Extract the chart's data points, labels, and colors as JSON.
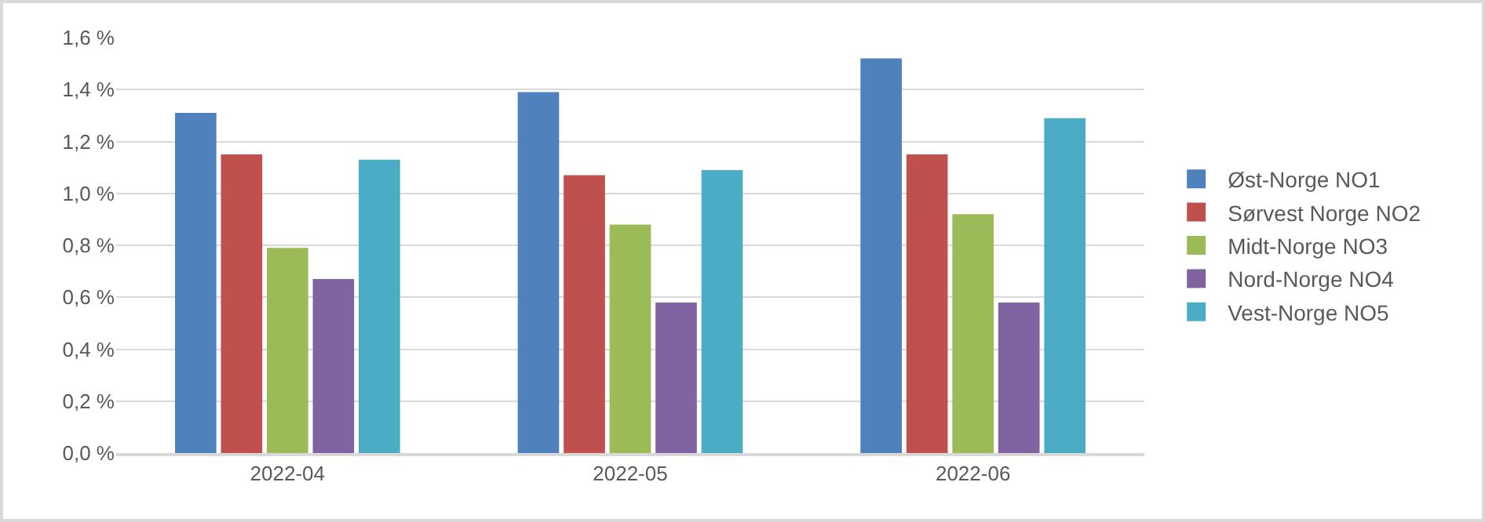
{
  "chart_data": {
    "type": "bar",
    "categories": [
      "2022-04",
      "2022-05",
      "2022-06"
    ],
    "series": [
      {
        "name": "Øst-Norge NO1",
        "color": "#4f81bd",
        "values": [
          1.31,
          1.39,
          1.52
        ]
      },
      {
        "name": "Sørvest Norge NO2",
        "color": "#c0504d",
        "values": [
          1.15,
          1.07,
          1.15
        ]
      },
      {
        "name": "Midt-Norge NO3",
        "color": "#9bbb59",
        "values": [
          0.79,
          0.88,
          0.92
        ]
      },
      {
        "name": "Nord-Norge NO4",
        "color": "#8064a2",
        "values": [
          0.67,
          0.58,
          0.58
        ]
      },
      {
        "name": "Vest-Norge NO5",
        "color": "#4bacc6",
        "values": [
          1.13,
          1.09,
          1.29
        ]
      }
    ],
    "ylim": [
      0,
      1.6
    ],
    "yticks": [
      {
        "value": 0,
        "label": "0,0 %"
      },
      {
        "value": 0.2,
        "label": "0,2 %"
      },
      {
        "value": 0.4,
        "label": "0,4 %"
      },
      {
        "value": 0.6,
        "label": "0,6 %"
      },
      {
        "value": 0.8,
        "label": "0,8 %"
      },
      {
        "value": 1.0,
        "label": "1,0 %"
      },
      {
        "value": 1.2,
        "label": "1,2 %"
      },
      {
        "value": 1.4,
        "label": "1,4 %"
      },
      {
        "value": 1.6,
        "label": "1,6 %"
      }
    ],
    "grid": "y",
    "legend": "right"
  }
}
